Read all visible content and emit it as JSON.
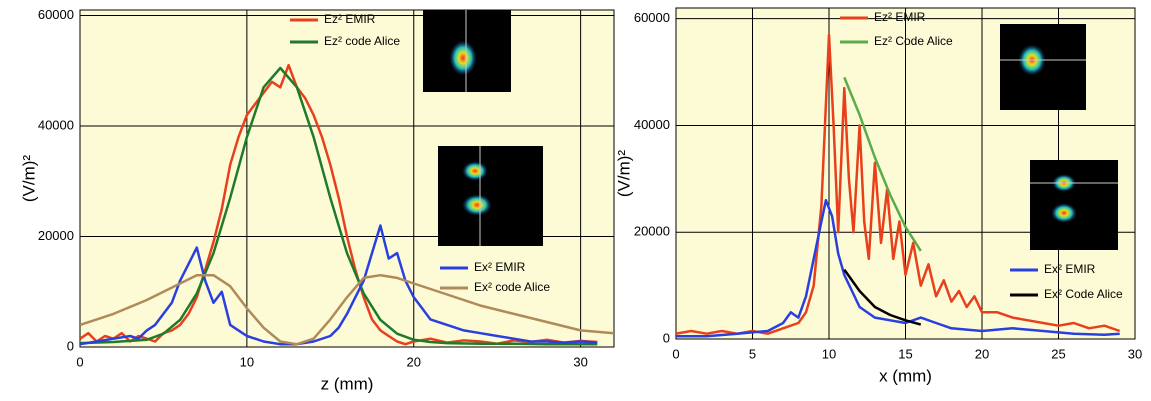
{
  "chart_data": [
    {
      "type": "line",
      "x_label": "z (mm)",
      "y_label": "(V/m)²",
      "xlim": [
        0,
        32
      ],
      "xticks": [
        0,
        10,
        20,
        30
      ],
      "ylim": [
        0,
        61000
      ],
      "yticks": [
        0,
        20000,
        40000,
        60000
      ],
      "grid": true,
      "series": [
        {
          "name": "Ez² EMIR",
          "color": "#e8401c",
          "x": [
            0,
            0.5,
            1,
            1.5,
            2,
            2.5,
            3,
            3.5,
            4,
            4.5,
            5,
            5.5,
            6,
            6.5,
            7,
            7.5,
            8,
            8.5,
            9,
            9.5,
            10,
            10.5,
            11,
            11.5,
            12,
            12.5,
            13,
            13.5,
            14,
            14.5,
            15,
            15.5,
            16,
            16.5,
            17,
            17.5,
            18,
            18.5,
            19,
            19.5,
            20,
            21,
            22,
            23,
            24,
            25,
            26,
            27,
            28,
            29,
            30,
            31
          ],
          "values": [
            1500,
            2500,
            1000,
            2000,
            1500,
            2500,
            1000,
            2000,
            1500,
            1000,
            2500,
            3000,
            4000,
            6000,
            9000,
            14000,
            19000,
            25000,
            33000,
            38000,
            42000,
            44000,
            46000,
            48000,
            47000,
            51000,
            47000,
            45000,
            42000,
            38000,
            33000,
            27000,
            20000,
            14000,
            9000,
            5000,
            3000,
            2000,
            1000,
            500,
            1000,
            1500,
            800,
            1200,
            1000,
            600,
            1200,
            900,
            1300,
            800,
            1100,
            900
          ]
        },
        {
          "name": "Ez² code Alice",
          "color": "#1f7a2a",
          "x": [
            0,
            2,
            4,
            5,
            6,
            7,
            8,
            9,
            10,
            11,
            12,
            13,
            14,
            15,
            16,
            17,
            18,
            19,
            20,
            21,
            22,
            24,
            26,
            28,
            30,
            31
          ],
          "values": [
            700,
            900,
            1300,
            2400,
            4900,
            9700,
            17000,
            27000,
            38000,
            47000,
            50500,
            47000,
            38000,
            27000,
            17000,
            9700,
            4900,
            2400,
            1300,
            900,
            700,
            600,
            600,
            500,
            500,
            500
          ]
        },
        {
          "name": "Ex² EMIR",
          "color": "#2a3fe0",
          "x": [
            0,
            1,
            2,
            3,
            3.5,
            4,
            4.5,
            5,
            5.5,
            6,
            6.5,
            7,
            7.5,
            8,
            8.5,
            9,
            9.5,
            10,
            10.5,
            11,
            12,
            13,
            14,
            15,
            15.5,
            16,
            16.5,
            17,
            17.5,
            18,
            18.5,
            19,
            19.5,
            20,
            20.5,
            21,
            22,
            23,
            24,
            25,
            26,
            27,
            28,
            29,
            30,
            31
          ],
          "values": [
            500,
            1000,
            1500,
            2000,
            1500,
            3000,
            4000,
            6000,
            8000,
            12000,
            15000,
            18000,
            12000,
            8000,
            10000,
            4000,
            3000,
            2000,
            1500,
            1000,
            500,
            500,
            1000,
            2000,
            3500,
            6000,
            9000,
            12000,
            17000,
            22000,
            16000,
            17000,
            12000,
            9000,
            7000,
            5000,
            4000,
            3000,
            2500,
            2000,
            1500,
            1000,
            1000,
            800,
            1000,
            800
          ]
        },
        {
          "name": "Ex² code Alice",
          "color": "#b08a5a",
          "x": [
            0,
            2,
            4,
            6,
            7,
            8,
            9,
            10,
            11,
            12,
            13,
            14,
            15,
            16,
            17,
            18,
            19,
            20,
            22,
            24,
            26,
            28,
            30,
            32
          ],
          "values": [
            4000,
            6000,
            8500,
            11500,
            13000,
            13000,
            11000,
            7000,
            3500,
            1000,
            500,
            1500,
            5000,
            9000,
            12500,
            13000,
            12500,
            11500,
            9500,
            7500,
            6000,
            4500,
            3000,
            2500
          ]
        }
      ]
    },
    {
      "type": "line",
      "x_label": "x (mm)",
      "y_label": "(V/m)²",
      "xlim": [
        0,
        30
      ],
      "xticks": [
        0,
        5,
        10,
        15,
        20,
        25,
        30
      ],
      "ylim": [
        0,
        62000
      ],
      "yticks": [
        0,
        20000,
        40000,
        60000
      ],
      "grid": true,
      "series": [
        {
          "name": "Ez² EMIR",
          "color": "#e8401c",
          "x": [
            0,
            1,
            2,
            3,
            4,
            5,
            6,
            7,
            8,
            8.5,
            9,
            9.5,
            10,
            10.3,
            10.6,
            11,
            11.3,
            11.6,
            12,
            12.3,
            12.6,
            13,
            13.4,
            13.8,
            14.2,
            14.6,
            15,
            15.5,
            16,
            16.5,
            17,
            17.5,
            18,
            18.5,
            19,
            19.5,
            20,
            21,
            22,
            23,
            24,
            25,
            26,
            27,
            28,
            29
          ],
          "values": [
            1000,
            1500,
            1000,
            1500,
            1000,
            1500,
            1000,
            2000,
            3000,
            5000,
            10000,
            25000,
            57000,
            40000,
            20000,
            47000,
            30000,
            20000,
            40000,
            22000,
            15000,
            33000,
            18000,
            28000,
            15000,
            22000,
            12000,
            18000,
            10000,
            14000,
            8000,
            11000,
            7000,
            9000,
            6000,
            8000,
            5000,
            5000,
            4000,
            3500,
            3000,
            2500,
            3000,
            2000,
            2500,
            1500
          ]
        },
        {
          "name": "Ez² Code Alice",
          "color": "#5aac4a",
          "x": [
            11,
            12,
            13,
            14,
            15,
            16
          ],
          "values": [
            49000,
            42000,
            34000,
            27000,
            21000,
            16500
          ]
        },
        {
          "name": "Ex² EMIR",
          "color": "#2a3fe0",
          "x": [
            0,
            2,
            4,
            6,
            7,
            7.5,
            8,
            8.5,
            9,
            9.5,
            9.8,
            10.2,
            10.6,
            11,
            11.5,
            12,
            13,
            14,
            15,
            16,
            17,
            18,
            20,
            22,
            24,
            26,
            28,
            29
          ],
          "values": [
            500,
            500,
            1000,
            1500,
            3000,
            5000,
            4000,
            8000,
            15000,
            22000,
            26000,
            23000,
            16000,
            12000,
            9000,
            6000,
            4000,
            3500,
            3000,
            4000,
            3000,
            2000,
            1500,
            2000,
            1500,
            1000,
            800,
            1000
          ]
        },
        {
          "name": "Ex² Code Alice",
          "color": "#000000",
          "x": [
            11,
            12,
            13,
            14,
            15,
            16
          ],
          "values": [
            13000,
            9000,
            6000,
            4500,
            3500,
            2700
          ]
        }
      ]
    }
  ]
}
